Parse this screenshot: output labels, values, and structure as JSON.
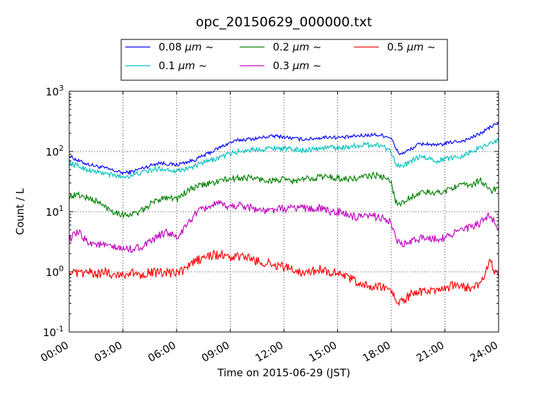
{
  "chart_data": {
    "type": "line",
    "title": "opc_20150629_000000.txt",
    "xlabel": "Time on 2015-06-29 (JST)",
    "ylabel": "Count / L",
    "x_unit": "hours",
    "xlim": [
      0,
      24
    ],
    "ylim": [
      0.1,
      1000
    ],
    "yscale": "log",
    "grid": true,
    "legend_position": "top, above plot",
    "x_ticks": [
      {
        "value": 0,
        "label": "00:00"
      },
      {
        "value": 3,
        "label": "03:00"
      },
      {
        "value": 6,
        "label": "06:00"
      },
      {
        "value": 9,
        "label": "09:00"
      },
      {
        "value": 12,
        "label": "12:00"
      },
      {
        "value": 15,
        "label": "15:00"
      },
      {
        "value": 18,
        "label": "18:00"
      },
      {
        "value": 21,
        "label": "21:00"
      },
      {
        "value": 24,
        "label": "24:00"
      }
    ],
    "y_ticks": [
      {
        "value": 0.1,
        "base": "10",
        "exp": "-1"
      },
      {
        "value": 1,
        "base": "10",
        "exp": "0"
      },
      {
        "value": 10,
        "base": "10",
        "exp": "1"
      },
      {
        "value": 100,
        "base": "10",
        "exp": "2"
      },
      {
        "value": 1000,
        "base": "10",
        "exp": "3"
      }
    ],
    "legend_unit": "μm",
    "legend_suffix": "~",
    "series": [
      {
        "name": "0.08",
        "color": "#0000ff",
        "x": [
          0,
          0.5,
          1,
          1.5,
          2,
          2.5,
          3,
          3.5,
          4,
          4.5,
          5,
          5.5,
          6,
          6.5,
          7,
          7.5,
          8,
          8.5,
          9,
          9.5,
          10,
          10.5,
          11,
          11.5,
          12,
          12.5,
          13,
          13.5,
          14,
          14.5,
          15,
          15.5,
          16,
          16.5,
          17,
          17.5,
          18,
          18.25,
          18.5,
          19,
          19.5,
          20,
          20.5,
          21,
          21.5,
          22,
          22.5,
          23,
          23.5,
          24
        ],
        "y": [
          85,
          70,
          62,
          57,
          53,
          48,
          44,
          46,
          52,
          58,
          65,
          62,
          60,
          66,
          72,
          85,
          100,
          120,
          140,
          155,
          160,
          165,
          175,
          180,
          175,
          165,
          160,
          162,
          168,
          175,
          170,
          172,
          180,
          185,
          190,
          185,
          170,
          110,
          90,
          105,
          130,
          135,
          125,
          135,
          145,
          150,
          170,
          200,
          250,
          300
        ]
      },
      {
        "name": "0.1",
        "color": "#00bfbf",
        "x": [
          0,
          0.5,
          1,
          1.5,
          2,
          2.5,
          3,
          3.5,
          4,
          4.5,
          5,
          5.5,
          6,
          6.5,
          7,
          7.5,
          8,
          8.5,
          9,
          9.5,
          10,
          10.5,
          11,
          11.5,
          12,
          12.5,
          13,
          13.5,
          14,
          14.5,
          15,
          15.5,
          16,
          16.5,
          17,
          17.5,
          18,
          18.25,
          18.5,
          19,
          19.5,
          20,
          20.5,
          21,
          21.5,
          22,
          22.5,
          23,
          23.5,
          24
        ],
        "y": [
          65,
          57,
          50,
          46,
          43,
          40,
          38,
          40,
          44,
          48,
          52,
          50,
          48,
          52,
          56,
          65,
          72,
          82,
          92,
          100,
          105,
          108,
          112,
          115,
          112,
          108,
          105,
          108,
          112,
          118,
          115,
          118,
          125,
          128,
          130,
          125,
          100,
          65,
          55,
          65,
          80,
          78,
          70,
          75,
          80,
          85,
          100,
          115,
          140,
          150
        ]
      },
      {
        "name": "0.2",
        "color": "#008000",
        "x": [
          0,
          0.5,
          1,
          1.5,
          2,
          2.5,
          3,
          3.5,
          4,
          4.5,
          5,
          5.5,
          6,
          6.5,
          7,
          7.5,
          8,
          8.5,
          9,
          9.5,
          10,
          10.5,
          11,
          11.5,
          12,
          12.5,
          13,
          13.5,
          14,
          14.5,
          15,
          15.5,
          16,
          16.5,
          17,
          17.5,
          18,
          18.25,
          18.5,
          19,
          19.5,
          20,
          20.5,
          21,
          21.5,
          22,
          22.5,
          23,
          23.5,
          24
        ],
        "y": [
          18,
          19,
          17,
          15,
          12,
          10,
          9,
          9,
          10,
          13,
          16,
          18,
          16,
          21,
          25,
          28,
          30,
          33,
          35,
          36,
          37,
          35,
          33,
          33,
          34,
          32,
          34,
          36,
          38,
          38,
          36,
          35,
          35,
          38,
          40,
          38,
          30,
          15,
          13,
          17,
          20,
          21,
          20,
          22,
          26,
          27,
          28,
          34,
          22,
          25
        ]
      },
      {
        "name": "0.3",
        "color": "#bf00bf",
        "x": [
          0,
          0.5,
          1,
          1.5,
          2,
          2.5,
          3,
          3.5,
          4,
          4.5,
          5,
          5.5,
          6,
          6.5,
          7,
          7.5,
          8,
          8.5,
          9,
          9.5,
          10,
          10.5,
          11,
          11.5,
          12,
          12.5,
          13,
          13.5,
          14,
          14.5,
          15,
          15.5,
          16,
          16.5,
          17,
          17.5,
          18,
          18.25,
          18.5,
          19,
          19.5,
          20,
          20.5,
          21,
          21.5,
          22,
          22.5,
          23,
          23.5,
          24
        ],
        "y": [
          3.5,
          4.5,
          3.2,
          2.9,
          2.7,
          2.5,
          2.4,
          2.4,
          2.6,
          3,
          4,
          4.6,
          3.6,
          5.5,
          9,
          11,
          13,
          13,
          12,
          13,
          12,
          11,
          10,
          11,
          11,
          11.5,
          12,
          11,
          11.5,
          10,
          10,
          9,
          8,
          8,
          8.5,
          8,
          6.5,
          3.5,
          2.8,
          3,
          3.5,
          3.8,
          3.5,
          3.8,
          4.5,
          5,
          5.5,
          6.5,
          8.5,
          5.5
        ]
      },
      {
        "name": "0.5",
        "color": "#ff0000",
        "x": [
          0,
          0.5,
          1,
          1.5,
          2,
          2.5,
          3,
          3.5,
          4,
          4.5,
          5,
          5.5,
          6,
          6.5,
          7,
          7.5,
          8,
          8.5,
          9,
          9.5,
          10,
          10.5,
          11,
          11.5,
          12,
          12.5,
          13,
          13.5,
          14,
          14.5,
          15,
          15.5,
          16,
          16.5,
          17,
          17.5,
          18,
          18.25,
          18.5,
          19,
          19.5,
          20,
          20.5,
          21,
          21.5,
          22,
          22.5,
          23,
          23.5,
          24
        ],
        "y": [
          1,
          0.9,
          1,
          0.9,
          1,
          0.9,
          0.9,
          0.95,
          0.9,
          1,
          0.95,
          0.95,
          0.95,
          1.1,
          1.5,
          1.7,
          1.9,
          1.9,
          1.7,
          1.8,
          1.7,
          1.5,
          1.4,
          1.3,
          1.2,
          1.1,
          1,
          1,
          1.1,
          1,
          1,
          0.8,
          0.7,
          0.6,
          0.55,
          0.55,
          0.5,
          0.35,
          0.3,
          0.4,
          0.45,
          0.5,
          0.45,
          0.5,
          0.6,
          0.55,
          0.55,
          0.6,
          1.5,
          0.8
        ]
      }
    ]
  }
}
